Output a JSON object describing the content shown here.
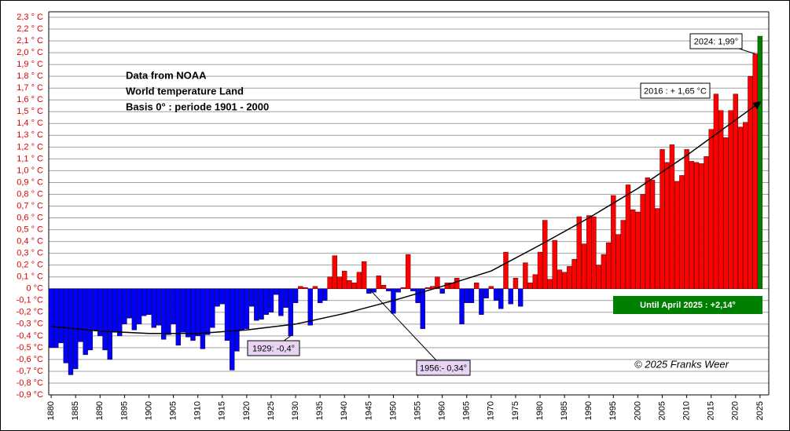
{
  "chart_data": {
    "type": "bar",
    "title_lines": [
      "Data from NOAA",
      "World temperature Land",
      "Basis 0° : periode 1901 - 2000"
    ],
    "x": [
      1880,
      1881,
      1882,
      1883,
      1884,
      1885,
      1886,
      1887,
      1888,
      1889,
      1890,
      1891,
      1892,
      1893,
      1894,
      1895,
      1896,
      1897,
      1898,
      1899,
      1900,
      1901,
      1902,
      1903,
      1904,
      1905,
      1906,
      1907,
      1908,
      1909,
      1910,
      1911,
      1912,
      1913,
      1914,
      1915,
      1916,
      1917,
      1918,
      1919,
      1920,
      1921,
      1922,
      1923,
      1924,
      1925,
      1926,
      1927,
      1928,
      1929,
      1930,
      1931,
      1932,
      1933,
      1934,
      1935,
      1936,
      1937,
      1938,
      1939,
      1940,
      1941,
      1942,
      1943,
      1944,
      1945,
      1946,
      1947,
      1948,
      1949,
      1950,
      1951,
      1952,
      1953,
      1954,
      1955,
      1956,
      1957,
      1958,
      1959,
      1960,
      1961,
      1962,
      1963,
      1964,
      1965,
      1966,
      1967,
      1968,
      1969,
      1970,
      1971,
      1972,
      1973,
      1974,
      1975,
      1976,
      1977,
      1978,
      1979,
      1980,
      1981,
      1982,
      1983,
      1984,
      1985,
      1986,
      1987,
      1988,
      1989,
      1990,
      1991,
      1992,
      1993,
      1994,
      1995,
      1996,
      1997,
      1998,
      1999,
      2000,
      2001,
      2002,
      2003,
      2004,
      2005,
      2006,
      2007,
      2008,
      2009,
      2010,
      2011,
      2012,
      2013,
      2014,
      2015,
      2016,
      2017,
      2018,
      2019,
      2020,
      2021,
      2022,
      2023,
      2024,
      2025
    ],
    "values": [
      -0.5,
      -0.5,
      -0.46,
      -0.63,
      -0.73,
      -0.68,
      -0.45,
      -0.56,
      -0.52,
      -0.35,
      -0.4,
      -0.52,
      -0.6,
      -0.37,
      -0.4,
      -0.3,
      -0.25,
      -0.35,
      -0.3,
      -0.23,
      -0.22,
      -0.33,
      -0.31,
      -0.43,
      -0.39,
      -0.3,
      -0.48,
      -0.37,
      -0.41,
      -0.44,
      -0.4,
      -0.51,
      -0.39,
      -0.33,
      -0.15,
      -0.13,
      -0.44,
      -0.69,
      -0.53,
      -0.35,
      -0.34,
      -0.15,
      -0.27,
      -0.26,
      -0.22,
      -0.2,
      -0.05,
      -0.23,
      -0.16,
      -0.4,
      -0.12,
      0.02,
      0.01,
      -0.31,
      0.02,
      -0.12,
      -0.1,
      0.1,
      0.28,
      0.1,
      0.15,
      0.07,
      0.05,
      0.14,
      0.23,
      -0.04,
      -0.03,
      0.11,
      0.03,
      -0.02,
      -0.21,
      -0.03,
      0.01,
      0.29,
      -0.02,
      -0.12,
      -0.34,
      0.01,
      0.02,
      0.1,
      -0.04,
      0.05,
      0.05,
      0.09,
      -0.3,
      -0.12,
      -0.12,
      0.05,
      -0.22,
      -0.08,
      0.02,
      -0.1,
      -0.17,
      0.31,
      -0.13,
      0.09,
      -0.15,
      0.22,
      0.05,
      0.12,
      0.31,
      0.58,
      0.08,
      0.41,
      0.16,
      0.14,
      0.19,
      0.25,
      0.61,
      0.38,
      0.62,
      0.61,
      0.2,
      0.29,
      0.39,
      0.79,
      0.46,
      0.58,
      0.88,
      0.67,
      0.65,
      0.8,
      0.94,
      0.92,
      0.68,
      1.18,
      1.07,
      1.22,
      0.91,
      0.96,
      1.18,
      1.08,
      1.07,
      1.06,
      1.12,
      1.35,
      1.65,
      1.51,
      1.28,
      1.51,
      1.65,
      1.37,
      1.41,
      1.8,
      1.99,
      2.14
    ],
    "color_positive": "#ff0000",
    "color_negative": "#0000ff",
    "highlight_x": 2025,
    "highlight_color": "#008000",
    "trend": {
      "x": [
        1880,
        1890,
        1900,
        1910,
        1920,
        1930,
        1940,
        1950,
        1960,
        1970,
        1980,
        1990,
        2000,
        2010,
        2020,
        2025
      ],
      "values": [
        -0.32,
        -0.36,
        -0.38,
        -0.38,
        -0.35,
        -0.3,
        -0.21,
        -0.1,
        0.02,
        0.15,
        0.37,
        0.6,
        0.85,
        1.13,
        1.43,
        1.58
      ]
    },
    "xlim": [
      1879.5,
      2025.5
    ],
    "xticks": [
      1880,
      1885,
      1890,
      1895,
      1900,
      1905,
      1910,
      1915,
      1920,
      1925,
      1930,
      1935,
      1940,
      1945,
      1950,
      1955,
      1960,
      1965,
      1970,
      1975,
      1980,
      1985,
      1990,
      1995,
      2000,
      2005,
      2010,
      2015,
      2020,
      2025
    ],
    "ylim": [
      -0.9,
      2.3
    ],
    "yticks": [
      {
        "value": 2.3,
        "label": "2,3 ° C"
      },
      {
        "value": 2.2,
        "label": "2,2 ° C"
      },
      {
        "value": 2.1,
        "label": "2,1 ° C"
      },
      {
        "value": 2.0,
        "label": "2,0 ° C"
      },
      {
        "value": 1.9,
        "label": "1,9 ° C"
      },
      {
        "value": 1.8,
        "label": "1,8 ° C"
      },
      {
        "value": 1.7,
        "label": "1,7 ° C"
      },
      {
        "value": 1.6,
        "label": "1,6 ° C"
      },
      {
        "value": 1.5,
        "label": "1,5 ° C"
      },
      {
        "value": 1.4,
        "label": "1,4 ° C"
      },
      {
        "value": 1.3,
        "label": "1,3 ° C"
      },
      {
        "value": 1.2,
        "label": "1,2 ° C"
      },
      {
        "value": 1.1,
        "label": "1,1 ° C"
      },
      {
        "value": 1.0,
        "label": "1,0 ° C"
      },
      {
        "value": 0.9,
        "label": "0,9 ° C"
      },
      {
        "value": 0.8,
        "label": "0,8 ° C"
      },
      {
        "value": 0.7,
        "label": "0,7 ° C"
      },
      {
        "value": 0.6,
        "label": "0,6 ° C"
      },
      {
        "value": 0.5,
        "label": "0,5 ° C"
      },
      {
        "value": 0.4,
        "label": "0,4 ° C"
      },
      {
        "value": 0.3,
        "label": "0,3 ° C"
      },
      {
        "value": 0.2,
        "label": "0,2 ° C"
      },
      {
        "value": 0.1,
        "label": "0,1 ° C"
      },
      {
        "value": 0,
        "label": "0 °C"
      },
      {
        "value": -0.1,
        "label": "-0,1 °C"
      },
      {
        "value": -0.2,
        "label": "-0,2 °C"
      },
      {
        "value": -0.3,
        "label": "-0,3 °C"
      },
      {
        "value": -0.4,
        "label": "-0,4 °C"
      },
      {
        "value": -0.5,
        "label": "-0,5 °C"
      },
      {
        "value": -0.6,
        "label": "-0,6 °C"
      },
      {
        "value": -0.7,
        "label": "-0,7 °C"
      },
      {
        "value": -0.8,
        "label": "-0,8 °C"
      },
      {
        "value": -0.9,
        "label": "-0,9 °C"
      }
    ],
    "grid": true,
    "annotations": {
      "a2024": "2024: 1,99°",
      "a2016": "2016 : + 1,65 °C",
      "a1929": "1929: -0,4°",
      "a1956": "1956:- 0,34°",
      "until": "Until April 2025 : +2,14°",
      "copyright": "© 2025 Franks Weer"
    }
  }
}
